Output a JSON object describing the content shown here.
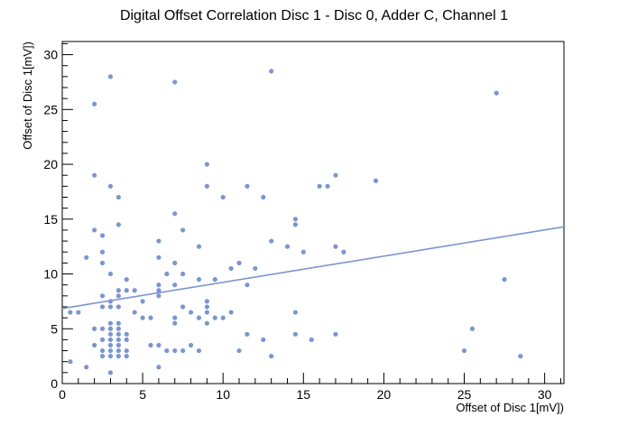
{
  "chart_data": {
    "type": "scatter",
    "title": "Digital Offset Correlation Disc 1 - Disc 0, Adder C, Channel 1",
    "xlabel": "Offset of Disc 1[mV])",
    "ylabel": "Offset of Disc 1[mV])",
    "xlim": [
      0,
      31.2
    ],
    "ylim": [
      0,
      31.2
    ],
    "x_major_ticks": [
      0,
      5,
      10,
      15,
      20,
      25,
      30
    ],
    "y_major_ticks": [
      0,
      5,
      10,
      15,
      20,
      25,
      30
    ],
    "minor_tick_step": 1,
    "color": "#7b96cf",
    "fit_line": {
      "x": [
        0,
        31.2
      ],
      "y": [
        6.85,
        14.3
      ]
    },
    "points": [
      [
        0.5,
        6.5
      ],
      [
        1,
        6.5
      ],
      [
        0.5,
        2
      ],
      [
        1.5,
        11.5
      ],
      [
        1.5,
        1.5
      ],
      [
        2,
        25.5
      ],
      [
        2,
        19
      ],
      [
        2,
        14
      ],
      [
        2,
        5
      ],
      [
        2,
        3.5
      ],
      [
        2.5,
        13.5
      ],
      [
        2.5,
        12
      ],
      [
        2.5,
        11
      ],
      [
        2.5,
        8
      ],
      [
        2.5,
        7
      ],
      [
        2.5,
        5
      ],
      [
        2.5,
        4
      ],
      [
        2.5,
        3
      ],
      [
        2.5,
        2.5
      ],
      [
        3,
        28
      ],
      [
        3,
        18
      ],
      [
        3,
        10
      ],
      [
        3,
        7.5
      ],
      [
        3,
        7
      ],
      [
        3,
        5.5
      ],
      [
        3,
        5
      ],
      [
        3,
        4.5
      ],
      [
        3,
        4
      ],
      [
        3,
        3.5
      ],
      [
        3,
        3
      ],
      [
        3,
        2.5
      ],
      [
        3,
        1
      ],
      [
        3.5,
        17
      ],
      [
        3.5,
        14.5
      ],
      [
        3.5,
        8.5
      ],
      [
        3.5,
        8
      ],
      [
        3.5,
        7
      ],
      [
        3.5,
        5.5
      ],
      [
        3.5,
        5
      ],
      [
        3.5,
        4.5
      ],
      [
        3.5,
        4
      ],
      [
        3.5,
        3.5
      ],
      [
        3.5,
        3
      ],
      [
        3.5,
        2.5
      ],
      [
        4,
        9.5
      ],
      [
        4,
        8.5
      ],
      [
        4,
        4.5
      ],
      [
        4,
        4
      ],
      [
        4,
        3
      ],
      [
        4,
        2.5
      ],
      [
        4.5,
        8.5
      ],
      [
        4.5,
        6.5
      ],
      [
        5,
        7.5
      ],
      [
        5,
        6
      ],
      [
        5.5,
        6
      ],
      [
        5.5,
        3.5
      ],
      [
        6,
        13
      ],
      [
        6,
        11.5
      ],
      [
        6,
        9
      ],
      [
        6,
        8.5
      ],
      [
        6,
        8
      ],
      [
        6,
        3.5
      ],
      [
        6,
        1.5
      ],
      [
        6.5,
        10
      ],
      [
        6.5,
        3
      ],
      [
        7,
        27.5
      ],
      [
        7,
        15.5
      ],
      [
        7,
        11
      ],
      [
        7,
        9
      ],
      [
        7,
        6
      ],
      [
        7,
        5.5
      ],
      [
        7,
        3
      ],
      [
        7.5,
        14
      ],
      [
        7.5,
        10
      ],
      [
        7.5,
        7
      ],
      [
        7.5,
        3
      ],
      [
        8,
        6.5
      ],
      [
        8,
        3.5
      ],
      [
        8.5,
        12.5
      ],
      [
        8.5,
        9.5
      ],
      [
        8.5,
        6
      ],
      [
        8.5,
        3
      ],
      [
        9,
        20
      ],
      [
        9,
        18
      ],
      [
        9,
        7.5
      ],
      [
        9,
        7
      ],
      [
        9,
        6.5
      ],
      [
        9,
        5.5
      ],
      [
        9.5,
        9.5
      ],
      [
        9.5,
        6
      ],
      [
        10,
        17
      ],
      [
        10,
        6
      ],
      [
        10.5,
        10.5
      ],
      [
        10.5,
        6.5
      ],
      [
        11,
        11
      ],
      [
        11,
        3
      ],
      [
        11.5,
        18
      ],
      [
        11.5,
        9
      ],
      [
        11.5,
        4.5
      ],
      [
        12,
        10.5
      ],
      [
        12.5,
        17
      ],
      [
        12.5,
        4
      ],
      [
        13,
        28.5
      ],
      [
        13,
        13
      ],
      [
        13,
        2.5
      ],
      [
        14,
        12.5
      ],
      [
        14.5,
        15
      ],
      [
        14.5,
        14.5
      ],
      [
        14.5,
        6.5
      ],
      [
        14.5,
        4.5
      ],
      [
        15,
        12
      ],
      [
        15.5,
        4
      ],
      [
        16,
        18
      ],
      [
        16.5,
        18
      ],
      [
        17,
        19
      ],
      [
        17,
        12.5
      ],
      [
        17,
        4.5
      ],
      [
        17.5,
        12
      ],
      [
        19.5,
        18.5
      ],
      [
        25,
        3
      ],
      [
        25.5,
        5
      ],
      [
        27,
        26.5
      ],
      [
        27.5,
        9.5
      ],
      [
        28.5,
        2.5
      ]
    ]
  }
}
